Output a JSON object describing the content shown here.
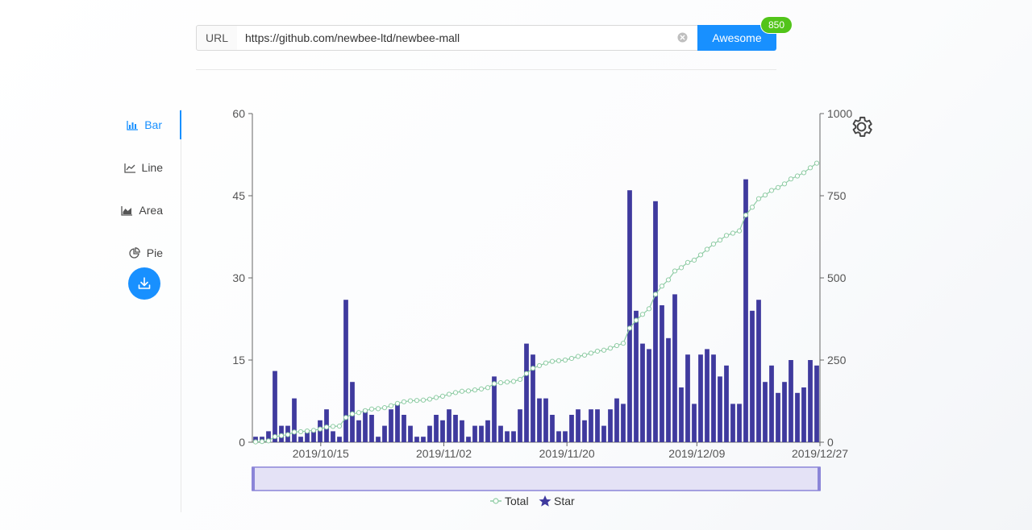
{
  "url_bar": {
    "label": "URL",
    "value": "https://github.com/newbee-ltd/newbee-mall",
    "button_label": "Awesome",
    "badge_count": "850"
  },
  "tabs": [
    {
      "label": "Bar",
      "icon": "bar-chart-icon",
      "active": true
    },
    {
      "label": "Line",
      "icon": "line-chart-icon",
      "active": false
    },
    {
      "label": "Area",
      "icon": "area-chart-icon",
      "active": false
    },
    {
      "label": "Pie",
      "icon": "pie-chart-icon",
      "active": false
    }
  ],
  "colors": {
    "accent": "#1890ff",
    "badge": "#52c41a",
    "bar": "#3f3a9e",
    "line": "#8fcca5",
    "zoom_fill": "#e4e2f6",
    "zoom_border": "#8b85d8"
  },
  "chart_data": {
    "type": "bar",
    "x_tick_labels": [
      "2019/10/15",
      "2019/11/02",
      "2019/11/20",
      "2019/12/09",
      "2019/12/27"
    ],
    "x_tick_dates": [
      "2019-10-15",
      "2019-11-02",
      "2019-11-20",
      "2019-12-09",
      "2019-12-27"
    ],
    "x_range": [
      "2019-10-05",
      "2019-12-27"
    ],
    "y_left": {
      "min": 0,
      "max": 60,
      "ticks": [
        0,
        15,
        30,
        45,
        60
      ]
    },
    "y_right": {
      "min": 0,
      "max": 1000,
      "ticks": [
        0,
        250,
        500,
        750,
        1000
      ]
    },
    "grid": false,
    "legend_position": "bottom-center",
    "series": [
      {
        "name": "Star",
        "type": "bar",
        "axis": "left",
        "values": [
          1,
          1,
          2,
          13,
          3,
          3,
          8,
          1,
          2,
          2,
          4,
          6,
          2,
          1,
          26,
          11,
          4,
          6,
          5,
          1,
          3,
          6,
          7,
          5,
          3,
          1,
          1,
          3,
          5,
          4,
          6,
          5,
          4,
          1,
          3,
          3,
          4,
          12,
          3,
          2,
          2,
          6,
          18,
          16,
          8,
          8,
          5,
          2,
          2,
          5,
          6,
          4,
          6,
          6,
          3,
          6,
          8,
          7,
          46,
          24,
          18,
          17,
          44,
          25,
          19,
          27,
          10,
          16,
          7,
          16,
          17,
          16,
          12,
          14,
          7,
          7,
          48,
          24,
          26,
          11,
          14,
          9,
          11,
          15,
          9,
          10,
          15,
          14
        ]
      },
      {
        "name": "Total",
        "type": "line",
        "axis": "right",
        "values": [
          1,
          2,
          4,
          17,
          20,
          23,
          31,
          32,
          34,
          36,
          40,
          46,
          48,
          49,
          75,
          86,
          90,
          96,
          101,
          102,
          105,
          111,
          118,
          123,
          126,
          127,
          128,
          131,
          136,
          140,
          146,
          151,
          155,
          156,
          159,
          162,
          166,
          178,
          181,
          183,
          185,
          191,
          209,
          225,
          233,
          241,
          246,
          248,
          250,
          255,
          261,
          265,
          271,
          277,
          280,
          286,
          294,
          301,
          347,
          371,
          389,
          406,
          450,
          475,
          494,
          521,
          531,
          547,
          554,
          570,
          587,
          603,
          615,
          629,
          636,
          643,
          691,
          715,
          741,
          752,
          766,
          775,
          786,
          801,
          810,
          820,
          835,
          849
        ]
      }
    ]
  }
}
